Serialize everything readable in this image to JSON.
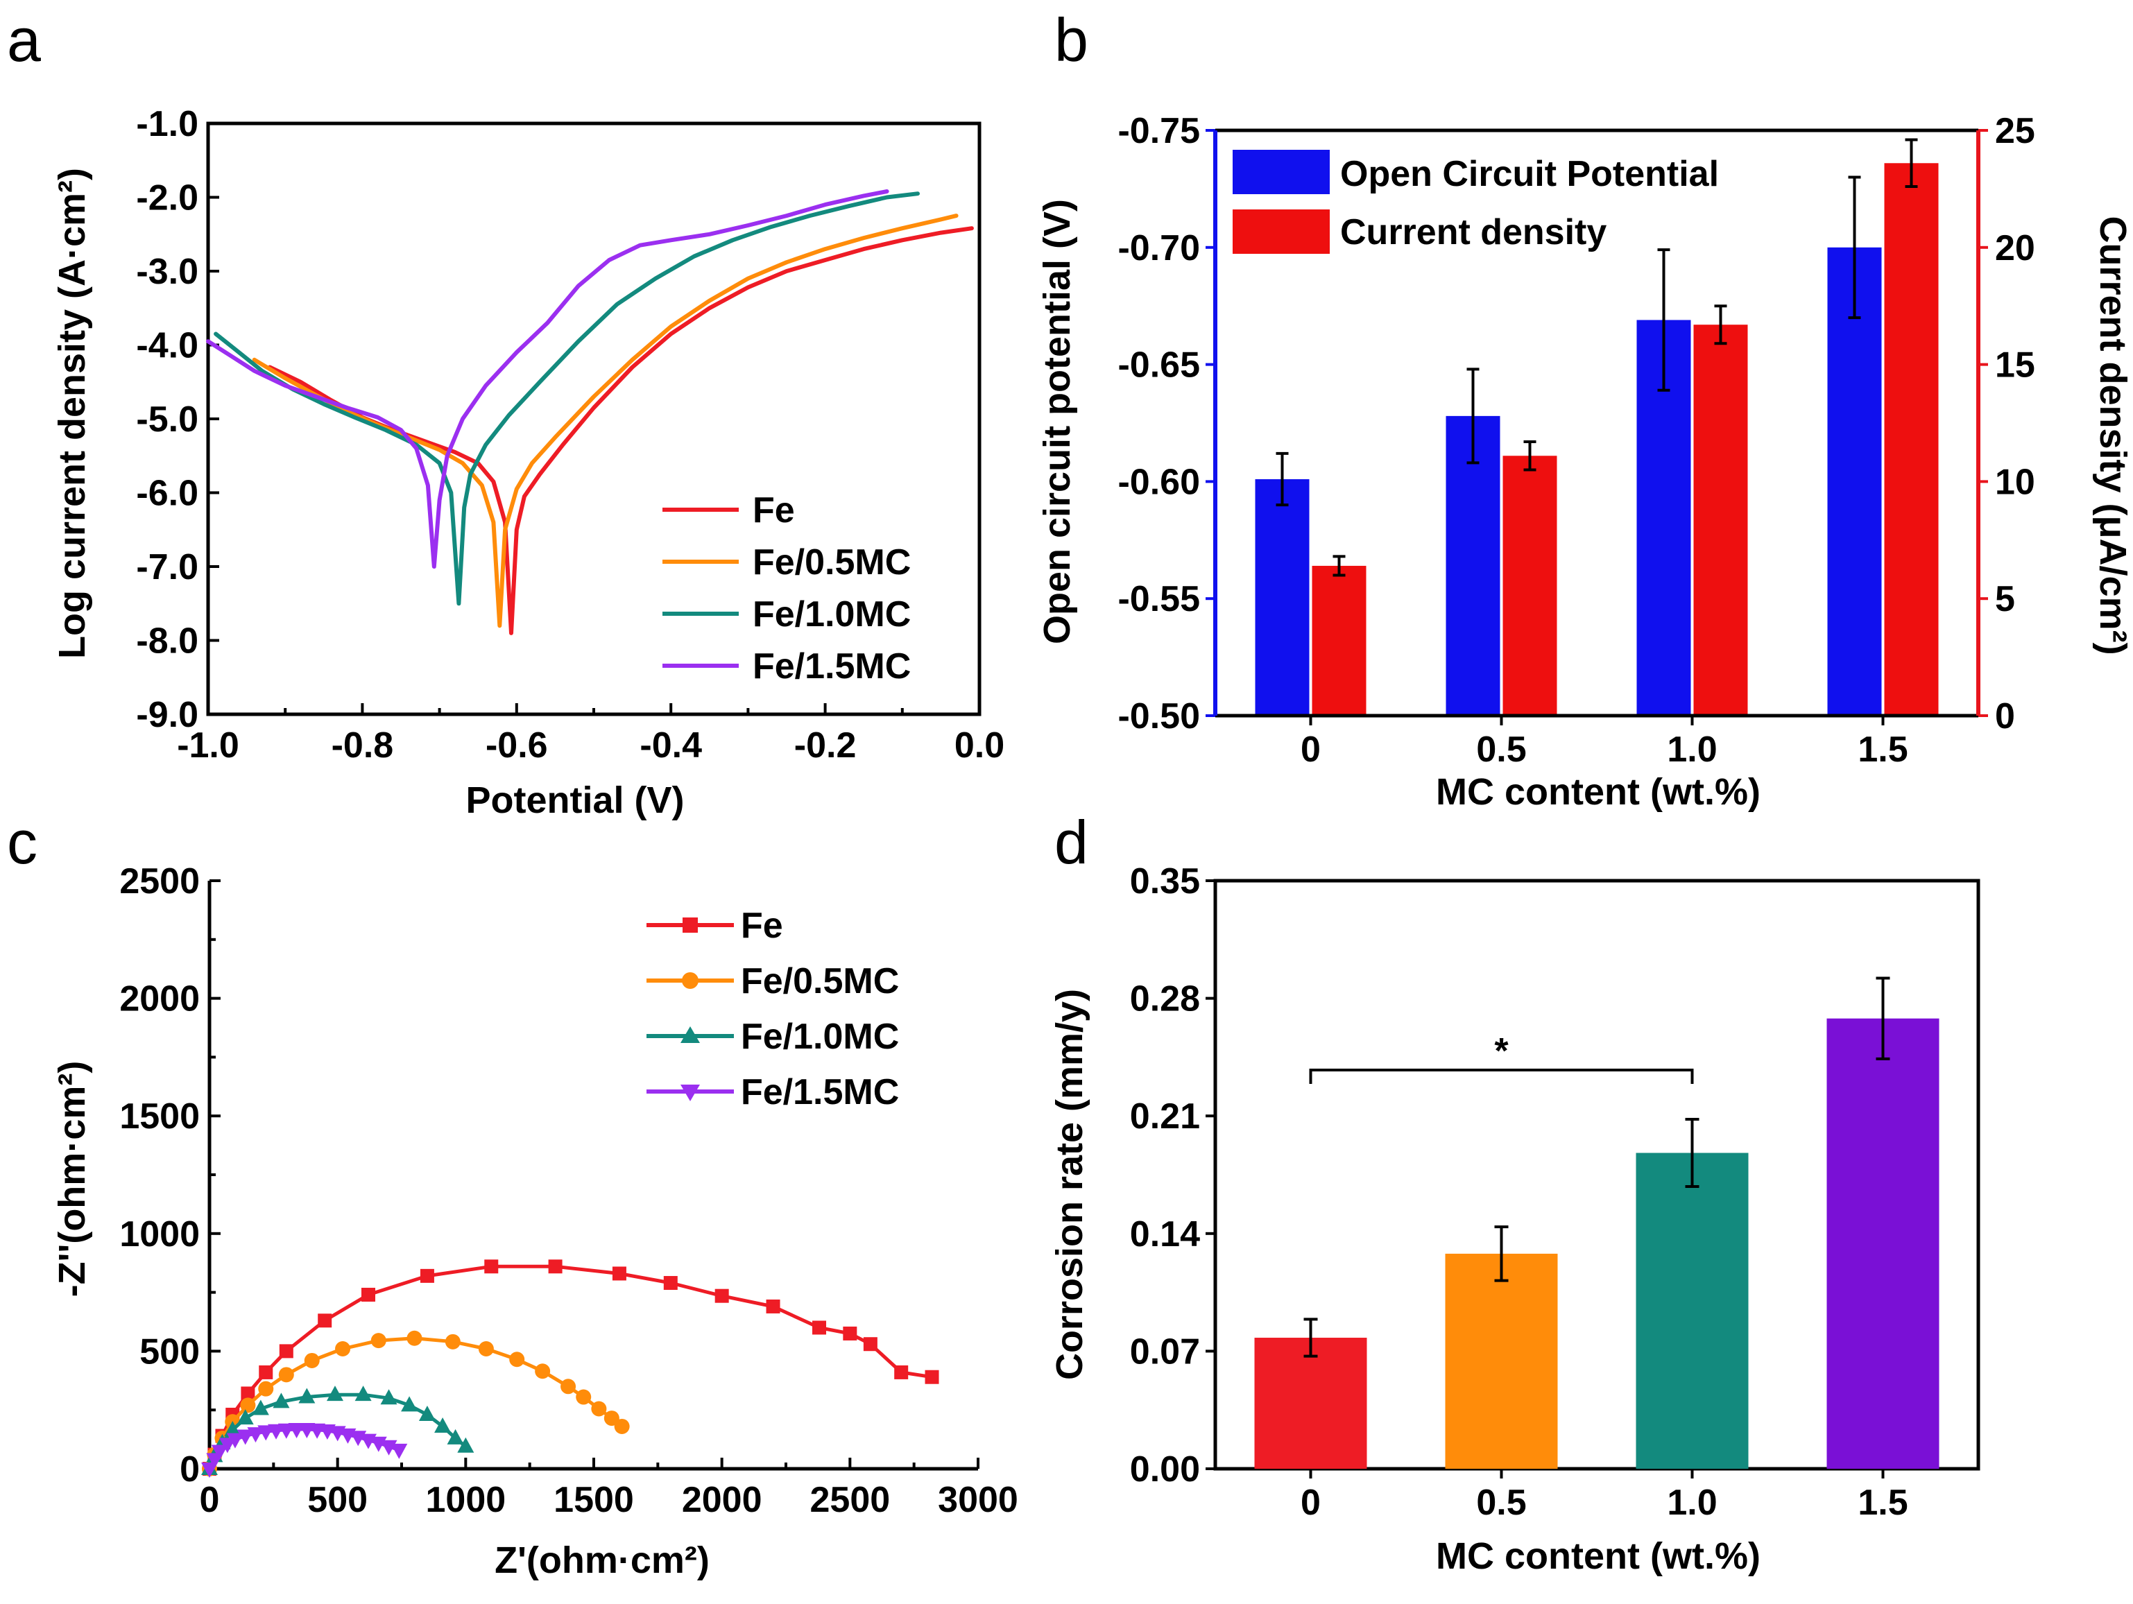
{
  "colors": {
    "fe": "#ee1c25",
    "mc05": "#ff8c0a",
    "mc10": "#138a7e",
    "mc15": "#9b2ff0",
    "ocp": "#1010ee",
    "cd": "#ee0f0f",
    "axis_red": "#e8141c"
  },
  "chart_data": [
    {
      "id": "a",
      "panel_label": "a",
      "type": "line",
      "xlabel": "Potential (V)",
      "ylabel": "Log current density (A·cm²)",
      "xlim": [
        -1.0,
        0.0
      ],
      "ylim": [
        -9.0,
        -1.0
      ],
      "xticks": [
        "-1.0",
        "-0.8",
        "-0.6",
        "-0.4",
        "-0.2",
        "0.0"
      ],
      "yticks": [
        "-1.0",
        "-2.0",
        "-3.0",
        "-4.0",
        "-5.0",
        "-6.0",
        "-7.0",
        "-8.0",
        "-9.0"
      ],
      "legend": [
        "Fe",
        "Fe/0.5MC",
        "Fe/1.0MC",
        "Fe/1.5MC"
      ],
      "series": [
        {
          "name": "Fe",
          "color": "#ee1c25",
          "x": [
            -0.92,
            -0.88,
            -0.84,
            -0.8,
            -0.76,
            -0.72,
            -0.68,
            -0.65,
            -0.63,
            -0.615,
            -0.607,
            -0.6,
            -0.59,
            -0.57,
            -0.54,
            -0.5,
            -0.45,
            -0.4,
            -0.35,
            -0.3,
            -0.25,
            -0.2,
            -0.15,
            -0.1,
            -0.05,
            -0.01
          ],
          "y": [
            -4.3,
            -4.5,
            -4.75,
            -4.98,
            -5.15,
            -5.3,
            -5.45,
            -5.6,
            -5.85,
            -6.4,
            -7.9,
            -6.5,
            -6.05,
            -5.75,
            -5.35,
            -4.85,
            -4.3,
            -3.85,
            -3.5,
            -3.22,
            -3.0,
            -2.85,
            -2.7,
            -2.58,
            -2.48,
            -2.42
          ]
        },
        {
          "name": "Fe/0.5MC",
          "color": "#ff8c0a",
          "x": [
            -0.94,
            -0.9,
            -0.86,
            -0.82,
            -0.78,
            -0.74,
            -0.7,
            -0.67,
            -0.645,
            -0.63,
            -0.622,
            -0.615,
            -0.6,
            -0.58,
            -0.55,
            -0.5,
            -0.45,
            -0.4,
            -0.35,
            -0.3,
            -0.25,
            -0.2,
            -0.15,
            -0.1,
            -0.05,
            -0.03
          ],
          "y": [
            -4.2,
            -4.45,
            -4.68,
            -4.9,
            -5.08,
            -5.25,
            -5.42,
            -5.6,
            -5.9,
            -6.4,
            -7.8,
            -6.5,
            -5.95,
            -5.6,
            -5.25,
            -4.7,
            -4.2,
            -3.75,
            -3.4,
            -3.1,
            -2.88,
            -2.7,
            -2.55,
            -2.42,
            -2.3,
            -2.25
          ]
        },
        {
          "name": "Fe/1.0MC",
          "color": "#138a7e",
          "x": [
            -0.99,
            -0.96,
            -0.93,
            -0.89,
            -0.85,
            -0.81,
            -0.77,
            -0.73,
            -0.7,
            -0.685,
            -0.675,
            -0.668,
            -0.66,
            -0.64,
            -0.61,
            -0.57,
            -0.52,
            -0.47,
            -0.42,
            -0.37,
            -0.32,
            -0.27,
            -0.22,
            -0.17,
            -0.12,
            -0.08
          ],
          "y": [
            -3.85,
            -4.1,
            -4.35,
            -4.6,
            -4.8,
            -4.98,
            -5.15,
            -5.35,
            -5.6,
            -6.0,
            -7.5,
            -6.2,
            -5.75,
            -5.35,
            -4.95,
            -4.5,
            -3.95,
            -3.45,
            -3.1,
            -2.8,
            -2.58,
            -2.4,
            -2.25,
            -2.12,
            -2.0,
            -1.95
          ]
        },
        {
          "name": "Fe/1.5MC",
          "color": "#9b2ff0",
          "x": [
            -1.0,
            -0.97,
            -0.94,
            -0.9,
            -0.86,
            -0.82,
            -0.78,
            -0.75,
            -0.73,
            -0.715,
            -0.707,
            -0.7,
            -0.69,
            -0.67,
            -0.64,
            -0.6,
            -0.56,
            -0.52,
            -0.48,
            -0.44,
            -0.4,
            -0.35,
            -0.3,
            -0.25,
            -0.2,
            -0.15,
            -0.12
          ],
          "y": [
            -3.95,
            -4.15,
            -4.35,
            -4.55,
            -4.7,
            -4.85,
            -4.98,
            -5.15,
            -5.4,
            -5.9,
            -7.0,
            -6.1,
            -5.5,
            -5.0,
            -4.55,
            -4.1,
            -3.7,
            -3.2,
            -2.85,
            -2.65,
            -2.58,
            -2.5,
            -2.38,
            -2.25,
            -2.1,
            -1.98,
            -1.92
          ]
        }
      ]
    },
    {
      "id": "b",
      "panel_label": "b",
      "type": "bar",
      "xlabel": "MC content (wt.%)",
      "ylabel": "Open circuit potential (V)",
      "ylabel_right": "Current density (μA/cm²)",
      "categories": [
        "0",
        "0.5",
        "1.0",
        "1.5"
      ],
      "ylim": [
        -0.5,
        -0.75
      ],
      "ylim_right": [
        0,
        25
      ],
      "yticks": [
        "-0.50",
        "-0.55",
        "-0.60",
        "-0.65",
        "-0.70",
        "-0.75"
      ],
      "yticks_right": [
        "0",
        "5",
        "10",
        "15",
        "20",
        "25"
      ],
      "series": [
        {
          "name": "Open Circuit Potential",
          "axis": "left",
          "color": "#1010ee",
          "values": [
            -0.601,
            -0.628,
            -0.669,
            -0.7
          ],
          "errors": [
            0.011,
            0.02,
            0.03,
            0.03
          ]
        },
        {
          "name": "Current density",
          "axis": "right",
          "color": "#ee0f0f",
          "values": [
            6.4,
            11.1,
            16.7,
            23.6
          ],
          "errors": [
            0.4,
            0.6,
            0.8,
            1.0
          ]
        }
      ]
    },
    {
      "id": "c",
      "panel_label": "c",
      "type": "scatter",
      "xlabel": "Z'(ohm·cm²)",
      "ylabel": "-Z''(ohm·cm²)",
      "xlim": [
        0,
        3000
      ],
      "ylim": [
        0,
        2500
      ],
      "xticks": [
        "0",
        "500",
        "1000",
        "1500",
        "2000",
        "2500",
        "3000"
      ],
      "yticks": [
        "0",
        "500",
        "1000",
        "1500",
        "2000",
        "2500"
      ],
      "legend": [
        "Fe",
        "Fe/0.5MC",
        "Fe/1.0MC",
        "Fe/1.5MC"
      ],
      "series": [
        {
          "name": "Fe",
          "color": "#ee1c25",
          "marker": "square",
          "x": [
            0,
            20,
            50,
            90,
            150,
            220,
            300,
            450,
            620,
            850,
            1100,
            1350,
            1600,
            1800,
            2000,
            2200,
            2380,
            2500,
            2580,
            2700,
            2820
          ],
          "y": [
            0,
            60,
            140,
            230,
            320,
            410,
            500,
            630,
            740,
            820,
            860,
            860,
            830,
            790,
            735,
            690,
            600,
            575,
            530,
            410,
            390
          ]
        },
        {
          "name": "Fe/0.5MC",
          "color": "#ff8c0a",
          "marker": "circle",
          "x": [
            0,
            20,
            50,
            90,
            150,
            220,
            300,
            400,
            520,
            660,
            800,
            950,
            1080,
            1200,
            1300,
            1400,
            1460,
            1520,
            1570,
            1610
          ],
          "y": [
            0,
            60,
            130,
            200,
            270,
            340,
            400,
            460,
            510,
            545,
            555,
            540,
            510,
            465,
            415,
            350,
            305,
            255,
            215,
            180
          ]
        },
        {
          "name": "Fe/1.0MC",
          "color": "#138a7e",
          "marker": "triangle-up",
          "x": [
            0,
            20,
            50,
            90,
            140,
            200,
            280,
            380,
            490,
            600,
            700,
            780,
            850,
            910,
            960,
            1000
          ],
          "y": [
            0,
            55,
            110,
            165,
            215,
            255,
            285,
            305,
            315,
            315,
            300,
            270,
            230,
            180,
            130,
            95
          ]
        },
        {
          "name": "Fe/1.5MC",
          "color": "#9b2ff0",
          "marker": "triangle-down",
          "x": [
            0,
            20,
            40,
            70,
            100,
            140,
            180,
            220,
            260,
            300,
            340,
            380,
            420,
            460,
            500,
            540,
            580,
            620,
            660,
            700,
            740
          ],
          "y": [
            0,
            40,
            75,
            105,
            125,
            140,
            150,
            158,
            163,
            166,
            168,
            168,
            166,
            162,
            155,
            145,
            135,
            122,
            110,
            95,
            80
          ]
        }
      ]
    },
    {
      "id": "d",
      "panel_label": "d",
      "type": "bar",
      "xlabel": "MC content (wt.%)",
      "ylabel": "Corrosion rate (mm/y)",
      "categories": [
        "0",
        "0.5",
        "1.0",
        "1.5"
      ],
      "ylim": [
        0,
        0.35
      ],
      "yticks": [
        "0.00",
        "0.07",
        "0.14",
        "0.21",
        "0.28",
        "0.35"
      ],
      "values": [
        0.078,
        0.128,
        0.188,
        0.268
      ],
      "errors": [
        0.011,
        0.016,
        0.02,
        0.024
      ],
      "bar_colors": [
        "#ee1c25",
        "#ff8c0a",
        "#138a7e",
        "#7a10d6"
      ],
      "annotation": {
        "text": "*",
        "from": "0",
        "to": "1.0"
      }
    }
  ]
}
